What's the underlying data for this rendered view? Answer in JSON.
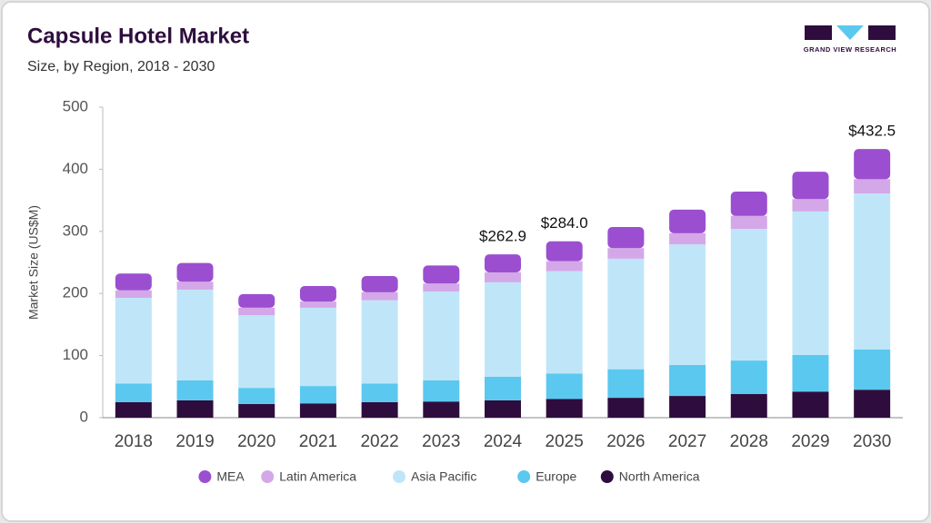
{
  "chart_data": {
    "type": "stacked_bar",
    "title": "Capsule Hotel Market",
    "subtitle": "Size, by Region, 2018 - 2030",
    "y_label": "Market Size (US$M)",
    "logo": "GRAND VIEW RESEARCH",
    "categories": [
      "2018",
      "2019",
      "2020",
      "2021",
      "2022",
      "2023",
      "2024",
      "2025",
      "2026",
      "2027",
      "2028",
      "2029",
      "2030"
    ],
    "series": [
      {
        "name": "North America",
        "color": "#2e0d3e",
        "values": [
          25,
          28,
          22,
          23,
          25,
          26,
          28,
          30,
          32,
          35,
          38,
          42,
          45
        ]
      },
      {
        "name": "Europe",
        "color": "#5bc8f0",
        "values": [
          30,
          32,
          26,
          28,
          30,
          34,
          38,
          41,
          46,
          50,
          54,
          59,
          65
        ]
      },
      {
        "name": "Asia Pacific",
        "color": "#bfe6f8",
        "values": [
          138,
          146,
          117,
          126,
          134,
          143,
          152,
          165,
          178,
          194,
          212,
          231,
          251
        ]
      },
      {
        "name": "Latin America",
        "color": "#d4a8e8",
        "values": [
          12,
          13,
          12,
          10,
          13,
          13,
          16,
          16,
          17,
          18,
          21,
          20,
          23
        ]
      },
      {
        "name": "MEA",
        "color": "#9b4fd0",
        "values": [
          27,
          30,
          22,
          25,
          26,
          29,
          28.9,
          32,
          34,
          38,
          39,
          44,
          48.5
        ]
      }
    ],
    "annotations": [
      {
        "category": "2024",
        "value": 262.9,
        "label": "$262.9"
      },
      {
        "category": "2025",
        "value": 284.0,
        "label": "$284.0"
      },
      {
        "category": "2030",
        "value": 432.5,
        "label": "$432.5"
      }
    ],
    "ylim": [
      0,
      500
    ],
    "yticks": [
      0,
      100,
      200,
      300,
      400,
      500
    ],
    "grid": false,
    "legend": "bottom"
  }
}
